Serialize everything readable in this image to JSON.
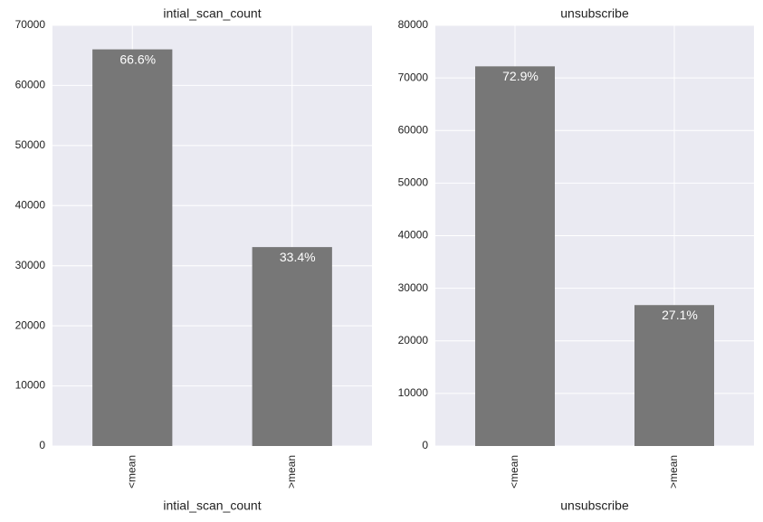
{
  "chart_data": [
    {
      "type": "bar",
      "title": "intial_scan_count",
      "xlabel": "intial_scan_count",
      "categories": [
        "<mean",
        ">mean"
      ],
      "values": [
        66000,
        33100
      ],
      "value_labels": [
        "66.6%",
        "33.4%"
      ],
      "color": "#777777",
      "ylim": [
        0,
        70000
      ],
      "yticks": [
        0,
        10000,
        20000,
        30000,
        40000,
        50000,
        60000,
        70000
      ],
      "grid": true
    },
    {
      "type": "bar",
      "title": "unsubscribe",
      "xlabel": "unsubscribe",
      "categories": [
        "<mean",
        ">mean"
      ],
      "values": [
        72200,
        26800
      ],
      "value_labels": [
        "72.9%",
        "27.1%"
      ],
      "color": "#777777",
      "ylim": [
        0,
        80000
      ],
      "yticks": [
        0,
        10000,
        20000,
        30000,
        40000,
        50000,
        60000,
        70000,
        80000
      ],
      "grid": true
    }
  ]
}
